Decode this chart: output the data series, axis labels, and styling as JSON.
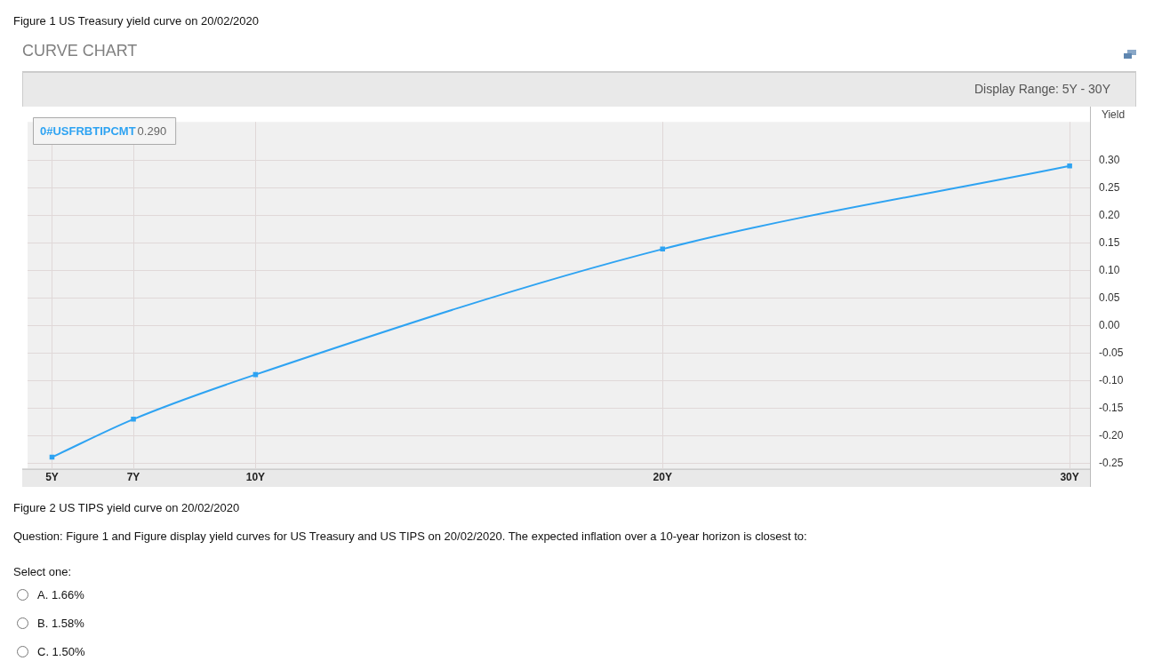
{
  "chart_data": {
    "type": "line",
    "title": "Figure 1 US Treasury yield curve on 20/02/2020",
    "subtitle": "CURVE CHART",
    "ylabel": "Yield",
    "x": [
      5,
      7,
      10,
      20,
      30
    ],
    "series": [
      {
        "name": "0#USFRBTIPCMT",
        "color": "#2ea3f2",
        "values": [
          -0.239,
          -0.17,
          -0.089,
          0.139,
          0.29
        ]
      }
    ],
    "xlim": [
      4.4,
      30.5
    ],
    "xticks": [
      {
        "value": 5,
        "label": "5Y"
      },
      {
        "value": 7,
        "label": "7Y"
      },
      {
        "value": 10,
        "label": "10Y"
      },
      {
        "value": 20,
        "label": "20Y"
      },
      {
        "value": 30,
        "label": "30Y"
      }
    ],
    "ylim": [
      -0.26,
      0.37
    ],
    "yticks": [
      {
        "value": -0.25,
        "label": "-0.25"
      },
      {
        "value": -0.2,
        "label": "-0.20"
      },
      {
        "value": -0.15,
        "label": "-0.15"
      },
      {
        "value": -0.1,
        "label": "-0.10"
      },
      {
        "value": -0.05,
        "label": "-0.05"
      },
      {
        "value": 0,
        "label": "0.00"
      },
      {
        "value": 0.05,
        "label": "0.05"
      },
      {
        "value": 0.1,
        "label": "0.10"
      },
      {
        "value": 0.15,
        "label": "0.15"
      },
      {
        "value": 0.2,
        "label": "0.20"
      },
      {
        "value": 0.25,
        "label": "0.25"
      },
      {
        "value": 0.3,
        "label": "0.30"
      }
    ],
    "grid": true,
    "legend": "top left",
    "marker": "square",
    "line_style": "solid",
    "annotations": [
      "0.290",
      "Display Range: 5Y - 30Y",
      "Figure 2 US TIPS yield curve on 20/02/2020",
      "Question: Figure 1 and Figure display yield curves for US Treasury and US TIPS on 20/02/2020. The expected inflation over a 10-year horizon is closest to:",
      "Select one:",
      "A. 1.66%",
      "B. 1.58%",
      "C. 1.50%"
    ]
  }
}
